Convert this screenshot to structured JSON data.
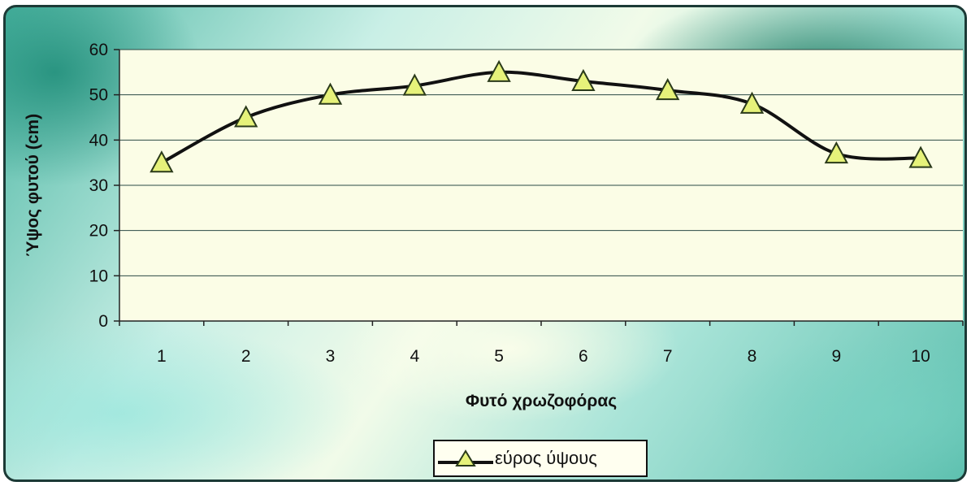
{
  "chart_data": {
    "type": "line",
    "title": "",
    "xlabel": "Φυτό χρωζοφόρας",
    "ylabel": "Ύψος φυτού (cm)",
    "categories": [
      "1",
      "2",
      "3",
      "4",
      "5",
      "6",
      "7",
      "8",
      "9",
      "10"
    ],
    "series": [
      {
        "name": "εύρος ύψους",
        "values": [
          35,
          45,
          50,
          52,
          55,
          53,
          51,
          48,
          37,
          36
        ]
      }
    ],
    "ylim": [
      0,
      60
    ],
    "yticks": [
      "0",
      "10",
      "20",
      "30",
      "40",
      "50",
      "60"
    ],
    "grid": true,
    "legend_position": "bottom",
    "colors": {
      "line": "#111111",
      "marker_fill": "#e6f27a",
      "marker_edge": "#2a3a1a",
      "plot_area": "#fbfde6",
      "gridline": "#2b4a45"
    }
  }
}
